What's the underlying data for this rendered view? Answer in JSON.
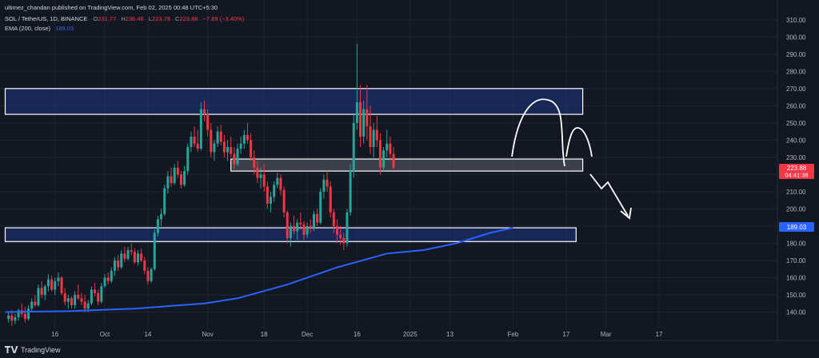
{
  "header": {
    "published": "ultimez_chandan published on TradingView.com, Feb 02, 2025 00:48 UTC+5:30",
    "symbol": "SOL / TetherUS, 1D, BINANCE",
    "ohlc": {
      "o_label": "O",
      "o": "231.77",
      "h_label": "H",
      "h": "236.46",
      "l_label": "L",
      "l": "223.78",
      "c_label": "C",
      "c": "223.88",
      "change": "−7.89 (−3.40%)"
    },
    "ema_label": "EMA (200, close)",
    "ema_value": "189.03"
  },
  "footer": {
    "brand": "TradingView"
  },
  "price_tag": {
    "price": "223.88",
    "countdown": "04:41:38",
    "color": "#f23645"
  },
  "ema_tag": {
    "value": "189.03",
    "color": "#2962ff"
  },
  "colors": {
    "up": "#26a69a",
    "down": "#f23645",
    "ema": "#2962ff",
    "zone_fill": "#1e3a8a",
    "background": "#131722"
  },
  "chart_data": {
    "type": "candlestick",
    "symbol": "SOL / TetherUS",
    "timeframe": "1D",
    "exchange": "BINANCE",
    "ylim": [
      130,
      315
    ],
    "y_ticks": [
      140,
      150,
      160,
      170,
      180,
      190,
      200,
      210,
      220,
      230,
      240,
      250,
      260,
      270,
      280,
      290,
      300,
      310
    ],
    "x_ticks": [
      {
        "label": "16",
        "date": "2024-09-16"
      },
      {
        "label": "Oct",
        "date": "2024-10-01"
      },
      {
        "label": "14",
        "date": "2024-10-14"
      },
      {
        "label": "Nov",
        "date": "2024-11-01"
      },
      {
        "label": "18",
        "date": "2024-11-18"
      },
      {
        "label": "Dec",
        "date": "2024-12-01"
      },
      {
        "label": "16",
        "date": "2024-12-16"
      },
      {
        "label": "2025",
        "date": "2025-01-01"
      },
      {
        "label": "13",
        "date": "2025-01-13"
      },
      {
        "label": "Feb",
        "date": "2025-02-01"
      },
      {
        "label": "17",
        "date": "2025-02-17"
      },
      {
        "label": "Mar",
        "date": "2025-03-01"
      },
      {
        "label": "17",
        "date": "2025-03-17"
      }
    ],
    "x_start": "2024-09-01",
    "candles": [
      [
        136,
        140,
        134,
        138
      ],
      [
        138,
        141,
        132,
        135
      ],
      [
        135,
        139,
        133,
        137
      ],
      [
        137,
        142,
        135,
        141
      ],
      [
        141,
        145,
        137,
        139
      ],
      [
        139,
        143,
        134,
        136
      ],
      [
        136,
        144,
        135,
        142
      ],
      [
        142,
        148,
        140,
        146
      ],
      [
        146,
        150,
        143,
        144
      ],
      [
        144,
        156,
        143,
        154
      ],
      [
        154,
        158,
        148,
        150
      ],
      [
        150,
        156,
        147,
        155
      ],
      [
        155,
        162,
        152,
        159
      ],
      [
        159,
        161,
        152,
        153
      ],
      [
        153,
        160,
        150,
        158
      ],
      [
        158,
        163,
        155,
        160
      ],
      [
        160,
        161,
        150,
        151
      ],
      [
        151,
        154,
        144,
        146
      ],
      [
        146,
        150,
        142,
        148
      ],
      [
        148,
        149,
        142,
        144
      ],
      [
        144,
        152,
        142,
        150
      ],
      [
        150,
        156,
        147,
        148
      ],
      [
        148,
        151,
        144,
        146
      ],
      [
        146,
        150,
        140,
        142
      ],
      [
        142,
        147,
        140,
        145
      ],
      [
        145,
        155,
        144,
        153
      ],
      [
        153,
        157,
        149,
        151
      ],
      [
        151,
        153,
        144,
        146
      ],
      [
        146,
        157,
        145,
        155
      ],
      [
        155,
        162,
        154,
        160
      ],
      [
        160,
        163,
        156,
        158
      ],
      [
        158,
        166,
        157,
        164
      ],
      [
        164,
        172,
        161,
        170
      ],
      [
        170,
        173,
        164,
        166
      ],
      [
        166,
        176,
        165,
        174
      ],
      [
        174,
        178,
        169,
        171
      ],
      [
        171,
        178,
        170,
        176
      ],
      [
        176,
        180,
        173,
        175
      ],
      [
        175,
        177,
        168,
        169
      ],
      [
        169,
        176,
        167,
        174
      ],
      [
        174,
        177,
        169,
        170
      ],
      [
        170,
        172,
        162,
        164
      ],
      [
        164,
        166,
        156,
        158
      ],
      [
        158,
        166,
        157,
        165
      ],
      [
        165,
        188,
        164,
        186
      ],
      [
        186,
        196,
        184,
        194
      ],
      [
        194,
        200,
        190,
        197
      ],
      [
        197,
        214,
        196,
        212
      ],
      [
        212,
        222,
        209,
        219
      ],
      [
        219,
        224,
        213,
        215
      ],
      [
        215,
        226,
        214,
        224
      ],
      [
        224,
        228,
        218,
        220
      ],
      [
        220,
        222,
        212,
        214
      ],
      [
        214,
        225,
        213,
        222
      ],
      [
        222,
        238,
        220,
        236
      ],
      [
        236,
        245,
        233,
        242
      ],
      [
        242,
        248,
        236,
        238
      ],
      [
        238,
        246,
        233,
        235
      ],
      [
        235,
        262,
        234,
        258
      ],
      [
        258,
        263,
        251,
        255
      ],
      [
        255,
        258,
        242,
        246
      ],
      [
        246,
        250,
        230,
        233
      ],
      [
        233,
        240,
        228,
        238
      ],
      [
        238,
        248,
        236,
        245
      ],
      [
        245,
        249,
        237,
        239
      ],
      [
        239,
        243,
        230,
        233
      ],
      [
        233,
        240,
        228,
        236
      ],
      [
        236,
        242,
        230,
        232
      ],
      [
        232,
        236,
        223,
        226
      ],
      [
        226,
        238,
        225,
        235
      ],
      [
        235,
        242,
        232,
        238
      ],
      [
        238,
        246,
        235,
        243
      ],
      [
        243,
        250,
        238,
        240
      ],
      [
        240,
        244,
        228,
        230
      ],
      [
        230,
        234,
        220,
        224
      ],
      [
        224,
        228,
        215,
        218
      ],
      [
        218,
        224,
        212,
        220
      ],
      [
        220,
        226,
        210,
        213
      ],
      [
        213,
        216,
        200,
        203
      ],
      [
        203,
        210,
        198,
        207
      ],
      [
        207,
        216,
        204,
        214
      ],
      [
        214,
        221,
        212,
        218
      ],
      [
        218,
        220,
        208,
        211
      ],
      [
        211,
        213,
        195,
        198
      ],
      [
        198,
        199,
        180,
        183
      ],
      [
        183,
        192,
        178,
        190
      ],
      [
        190,
        196,
        185,
        187
      ],
      [
        187,
        194,
        182,
        192
      ],
      [
        192,
        198,
        188,
        191
      ],
      [
        191,
        193,
        182,
        185
      ],
      [
        185,
        192,
        183,
        190
      ],
      [
        190,
        194,
        186,
        189
      ],
      [
        189,
        199,
        187,
        197
      ],
      [
        197,
        200,
        190,
        192
      ],
      [
        192,
        212,
        191,
        210
      ],
      [
        210,
        220,
        206,
        217
      ],
      [
        217,
        222,
        210,
        213
      ],
      [
        213,
        216,
        195,
        198
      ],
      [
        198,
        200,
        186,
        190
      ],
      [
        190,
        194,
        180,
        185
      ],
      [
        185,
        190,
        179,
        183
      ],
      [
        183,
        186,
        176,
        180
      ],
      [
        180,
        200,
        178,
        198
      ],
      [
        198,
        226,
        196,
        222
      ],
      [
        222,
        255,
        218,
        250
      ],
      [
        250,
        296,
        246,
        262
      ],
      [
        262,
        272,
        236,
        242
      ],
      [
        242,
        263,
        238,
        258
      ],
      [
        258,
        272,
        240,
        248
      ],
      [
        248,
        260,
        232,
        236
      ],
      [
        236,
        250,
        230,
        246
      ],
      [
        246,
        254,
        236,
        240
      ],
      [
        240,
        244,
        220,
        224
      ],
      [
        224,
        236,
        222,
        234
      ],
      [
        234,
        246,
        230,
        238
      ],
      [
        238,
        242,
        228,
        232
      ],
      [
        232,
        236,
        223,
        223.88
      ]
    ],
    "ema_200": [
      {
        "date": "2024-09-01",
        "value": 140
      },
      {
        "date": "2024-09-20",
        "value": 140.5
      },
      {
        "date": "2024-10-10",
        "value": 142
      },
      {
        "date": "2024-10-31",
        "value": 145
      },
      {
        "date": "2024-11-10",
        "value": 148
      },
      {
        "date": "2024-11-25",
        "value": 156
      },
      {
        "date": "2024-12-10",
        "value": 166
      },
      {
        "date": "2024-12-25",
        "value": 174
      },
      {
        "date": "2025-01-05",
        "value": 176
      },
      {
        "date": "2025-01-15",
        "value": 180
      },
      {
        "date": "2025-01-25",
        "value": 186
      },
      {
        "date": "2025-02-01",
        "value": 189.03
      }
    ],
    "zones": [
      {
        "from_date": "2024-09-01",
        "to_date": "2025-02-22",
        "low": 255,
        "high": 270
      },
      {
        "from_date": "2024-11-08",
        "to_date": "2025-02-22",
        "low": 222,
        "high": 229
      },
      {
        "from_date": "2024-09-01",
        "to_date": "2025-02-20",
        "low": 181,
        "high": 189
      }
    ]
  }
}
